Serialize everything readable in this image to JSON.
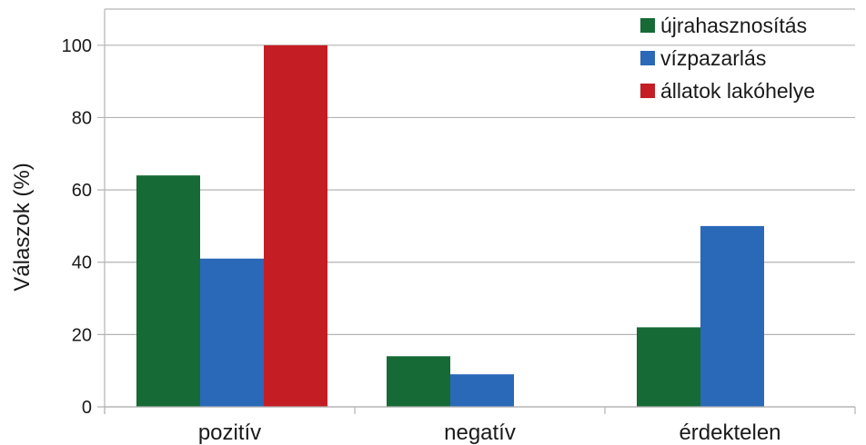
{
  "chart_data": {
    "type": "bar",
    "categories": [
      "pozitív",
      "negatív",
      "érdektelen"
    ],
    "series": [
      {
        "name": "újrahasznosítás",
        "values": [
          64,
          14,
          22
        ],
        "color": "#156a35"
      },
      {
        "name": "vízpazarlás",
        "values": [
          41,
          9,
          50
        ],
        "color": "#2a68b8"
      },
      {
        "name": "állatok lakóhelye",
        "values": [
          100,
          0,
          0
        ],
        "color": "#c41e24"
      }
    ],
    "ylabel": "Válaszok (%)",
    "xlabel": "",
    "ylim": [
      0,
      110
    ],
    "yticks": [
      0,
      20,
      40,
      60,
      80,
      100
    ],
    "grid": true,
    "legend": "top-right"
  }
}
